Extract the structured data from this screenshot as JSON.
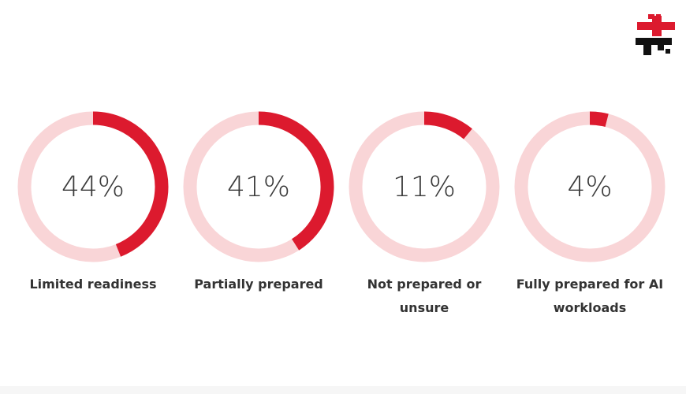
{
  "chart_data": [
    {
      "type": "donut",
      "categories": [
        "Limited readiness"
      ],
      "values": [
        44
      ],
      "value_labels": [
        "44%"
      ],
      "color": "#dc1a2e",
      "track_color": "#f9d5d7"
    },
    {
      "type": "donut",
      "categories": [
        "Partially prepared"
      ],
      "values": [
        41
      ],
      "value_labels": [
        "41%"
      ],
      "color": "#dc1a2e",
      "track_color": "#f9d5d7"
    },
    {
      "type": "donut",
      "categories": [
        "Not prepared or unsure"
      ],
      "values": [
        11
      ],
      "value_labels": [
        "11%"
      ],
      "color": "#dc1a2e",
      "track_color": "#f9d5d7"
    },
    {
      "type": "donut",
      "categories": [
        "Fully prepared for AI workloads"
      ],
      "values": [
        4
      ],
      "value_labels": [
        "4%"
      ],
      "color": "#dc1a2e",
      "track_color": "#f9d5d7"
    }
  ]
}
